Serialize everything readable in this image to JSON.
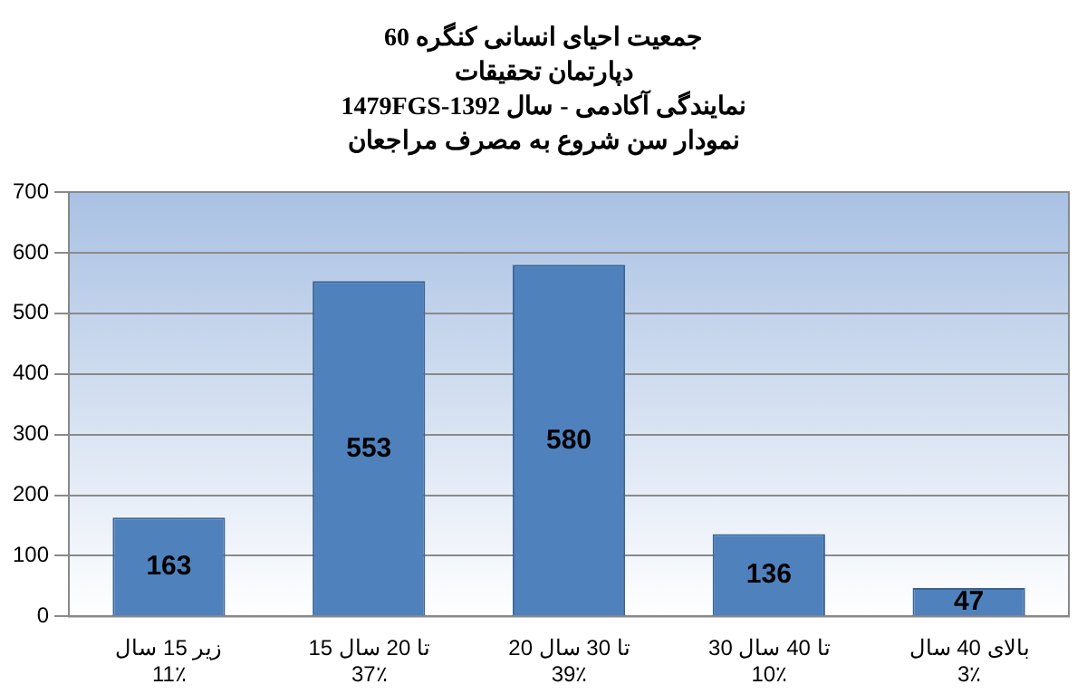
{
  "chart_data": {
    "type": "bar",
    "title": "جمعیت احیای انسانی کنگره 60\nدپارتمان تحقیقات\nنمایندگی آکادمی - سال 1392-1479FGS\nنمودار سن شروع به مصرف مراجعان",
    "categories": [
      "زیر 15 سال\n11٪",
      "15 تا 20 سال\n37٪",
      "20 تا 30 سال\n39٪",
      "30 تا 40 سال\n10٪",
      "بالای 40 سال\n3٪"
    ],
    "values": [
      163,
      553,
      580,
      136,
      47
    ],
    "color": "#4f81bd",
    "ylim": [
      0,
      700
    ],
    "yticks": [
      0,
      100,
      200,
      300,
      400,
      500,
      600,
      700
    ],
    "grid": "y",
    "data_labels": true
  }
}
